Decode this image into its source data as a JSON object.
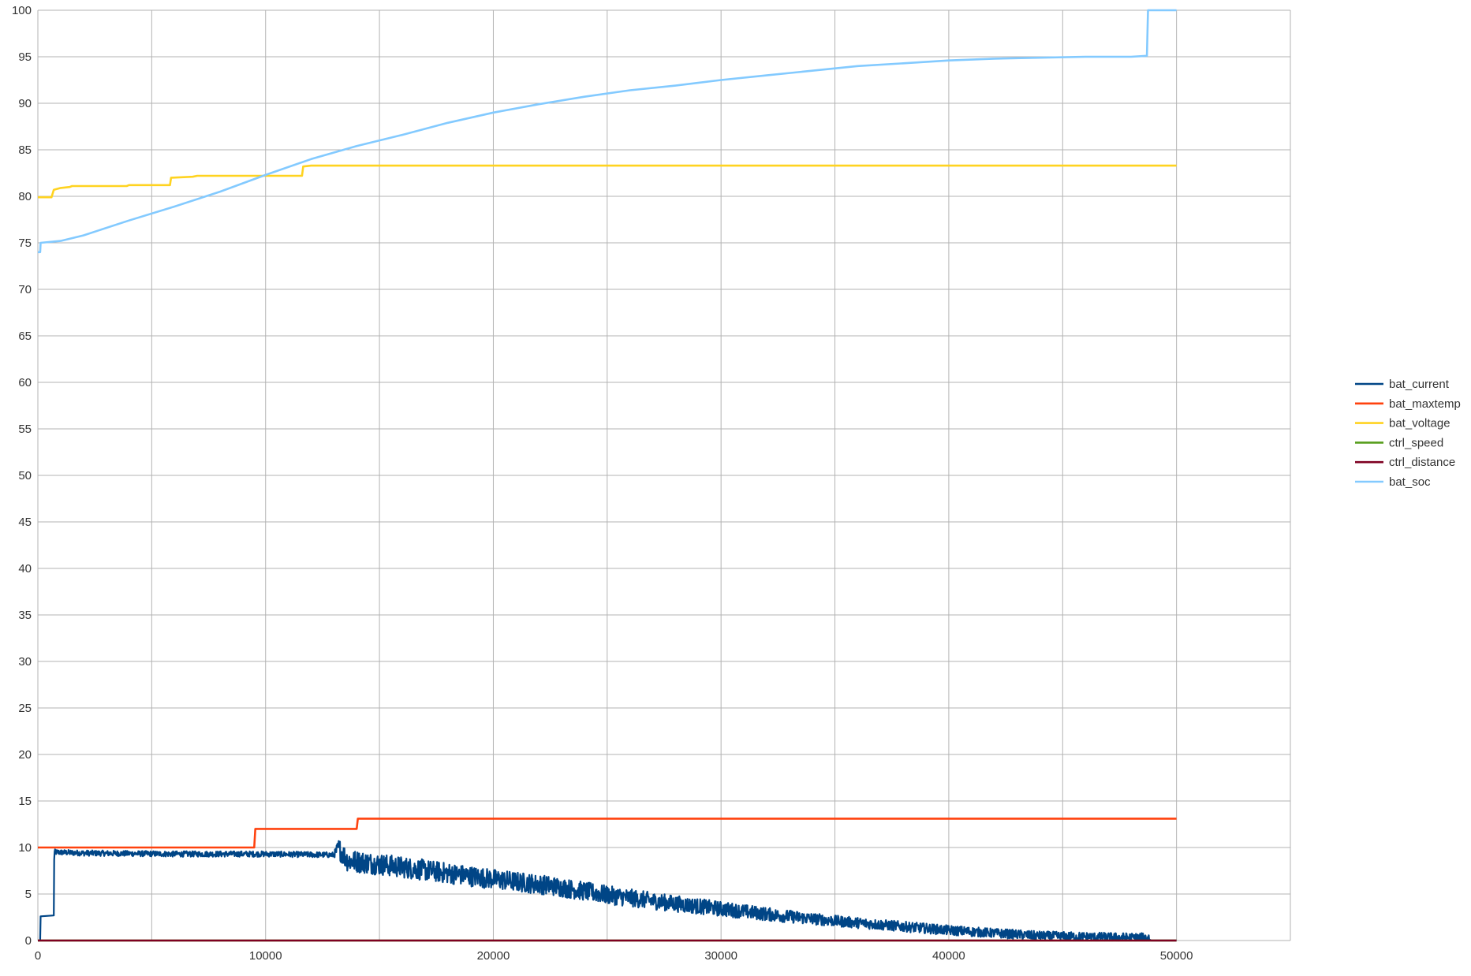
{
  "chart_data": {
    "type": "line",
    "title": "",
    "xlabel": "",
    "ylabel": "",
    "xlim": [
      0,
      55000
    ],
    "ylim": [
      0,
      100
    ],
    "x_ticks": [
      "0",
      "10000",
      "20000",
      "30000",
      "40000",
      "50000"
    ],
    "y_ticks": [
      "0",
      "5",
      "10",
      "15",
      "20",
      "25",
      "30",
      "35",
      "40",
      "45",
      "50",
      "55",
      "60",
      "65",
      "70",
      "75",
      "80",
      "85",
      "90",
      "95",
      "100"
    ],
    "grid": true,
    "legend_position": "right",
    "series": [
      {
        "name": "bat_current",
        "color": "#004586",
        "points": [
          [
            0,
            0
          ],
          [
            100,
            0
          ],
          [
            120,
            2.6
          ],
          [
            700,
            2.6
          ],
          [
            720,
            9.5
          ],
          [
            2000,
            9.4
          ],
          [
            6000,
            9.3
          ],
          [
            10000,
            9.3
          ],
          [
            13000,
            9.2
          ],
          [
            13200,
            10.0
          ],
          [
            13600,
            8.6
          ],
          [
            15000,
            8.2
          ],
          [
            17500,
            7.4
          ],
          [
            20000,
            6.6
          ],
          [
            22500,
            5.9
          ],
          [
            25000,
            4.9
          ],
          [
            27500,
            4.1
          ],
          [
            30000,
            3.4
          ],
          [
            32500,
            2.7
          ],
          [
            35000,
            2.1
          ],
          [
            37500,
            1.6
          ],
          [
            40000,
            1.1
          ],
          [
            42000,
            0.8
          ],
          [
            44000,
            0.5
          ],
          [
            46000,
            0.4
          ],
          [
            48000,
            0.3
          ],
          [
            48800,
            0.3
          ],
          [
            48900,
            0
          ],
          [
            50000,
            0
          ]
        ],
        "noise_amplitude": [
          [
            700,
            0.3
          ],
          [
            13000,
            0.3
          ],
          [
            13300,
            1.2
          ],
          [
            25000,
            1.0
          ],
          [
            35000,
            0.6
          ],
          [
            42000,
            0.5
          ],
          [
            48800,
            0.5
          ]
        ]
      },
      {
        "name": "bat_maxtemp",
        "color": "#ff420e",
        "points": [
          [
            0,
            10
          ],
          [
            9500,
            10
          ],
          [
            9550,
            12
          ],
          [
            14000,
            12
          ],
          [
            14050,
            13.1
          ],
          [
            50000,
            13.1
          ]
        ]
      },
      {
        "name": "bat_voltage",
        "color": "#ffd320",
        "points": [
          [
            0,
            79.9
          ],
          [
            600,
            79.9
          ],
          [
            700,
            80.7
          ],
          [
            1000,
            80.9
          ],
          [
            1400,
            81.0
          ],
          [
            1500,
            81.1
          ],
          [
            3900,
            81.1
          ],
          [
            4000,
            81.2
          ],
          [
            5800,
            81.2
          ],
          [
            5850,
            82.0
          ],
          [
            6800,
            82.1
          ],
          [
            7000,
            82.2
          ],
          [
            11600,
            82.2
          ],
          [
            11650,
            83.2
          ],
          [
            12000,
            83.3
          ],
          [
            50000,
            83.3
          ]
        ]
      },
      {
        "name": "ctrl_speed",
        "color": "#579d1c",
        "points": [
          [
            0,
            0
          ],
          [
            50000,
            0
          ]
        ]
      },
      {
        "name": "ctrl_distance",
        "color": "#7e0021",
        "points": [
          [
            0,
            0
          ],
          [
            50000,
            0
          ]
        ]
      },
      {
        "name": "bat_soc",
        "color": "#83caff",
        "points": [
          [
            0,
            74.0
          ],
          [
            100,
            74.0
          ],
          [
            120,
            75.0
          ],
          [
            1000,
            75.2
          ],
          [
            2000,
            75.8
          ],
          [
            4000,
            77.4
          ],
          [
            6000,
            78.9
          ],
          [
            8000,
            80.5
          ],
          [
            10000,
            82.3
          ],
          [
            12000,
            84.0
          ],
          [
            14000,
            85.4
          ],
          [
            16000,
            86.6
          ],
          [
            18000,
            87.9
          ],
          [
            20000,
            89.0
          ],
          [
            22000,
            89.9
          ],
          [
            24000,
            90.7
          ],
          [
            26000,
            91.4
          ],
          [
            28000,
            91.9
          ],
          [
            30000,
            92.5
          ],
          [
            32000,
            93.0
          ],
          [
            34000,
            93.5
          ],
          [
            36000,
            94.0
          ],
          [
            38000,
            94.3
          ],
          [
            40000,
            94.6
          ],
          [
            42000,
            94.8
          ],
          [
            44000,
            94.9
          ],
          [
            46000,
            95.0
          ],
          [
            48000,
            95.0
          ],
          [
            48700,
            95.1
          ],
          [
            48750,
            100
          ],
          [
            50000,
            100
          ]
        ]
      }
    ]
  }
}
